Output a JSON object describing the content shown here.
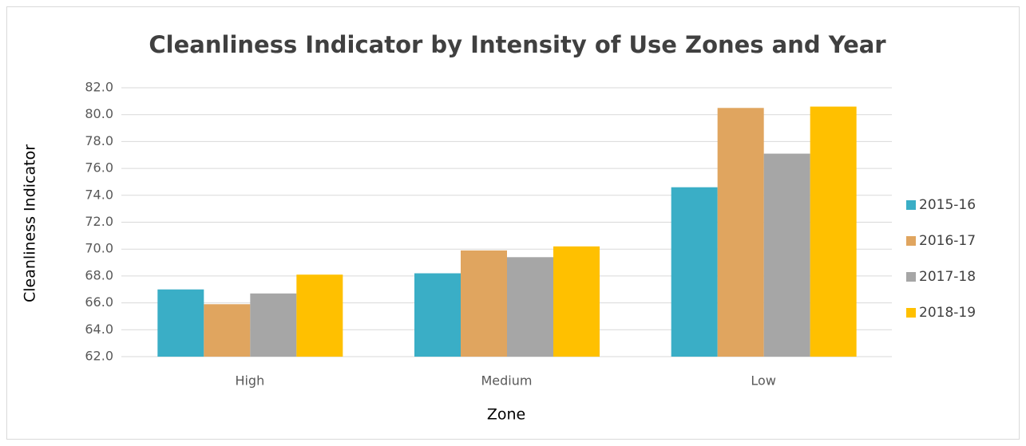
{
  "chart_data": {
    "type": "bar",
    "title": "Cleanliness Indicator by Intensity of Use Zones and Year",
    "x_label": "Zone",
    "y_label": "Cleanliness Indicator",
    "categories": [
      "High",
      "Medium",
      "Low"
    ],
    "series": [
      {
        "name": "2015-16",
        "color": "#3aaec6",
        "values": [
          67.0,
          68.2,
          74.6
        ]
      },
      {
        "name": "2016-17",
        "color": "#e0a55f",
        "values": [
          65.9,
          69.9,
          80.5
        ]
      },
      {
        "name": "2017-18",
        "color": "#a6a6a6",
        "values": [
          66.7,
          69.4,
          77.1
        ]
      },
      {
        "name": "2018-19",
        "color": "#ffc000",
        "values": [
          68.1,
          70.2,
          80.6
        ]
      }
    ],
    "ylim": [
      62,
      82
    ],
    "yticks": [
      {
        "value": 62,
        "label": "62.0"
      },
      {
        "value": 64,
        "label": "64.0"
      },
      {
        "value": 66,
        "label": "66.0"
      },
      {
        "value": 68,
        "label": "68.0"
      },
      {
        "value": 70,
        "label": "70.0"
      },
      {
        "value": 72,
        "label": "72.0"
      },
      {
        "value": 74,
        "label": "74.0"
      },
      {
        "value": 76,
        "label": "76.0"
      },
      {
        "value": 78,
        "label": "78.0"
      },
      {
        "value": 80,
        "label": "80.0"
      },
      {
        "value": 82,
        "label": "82.0"
      }
    ],
    "grid": true,
    "legend": "right"
  }
}
